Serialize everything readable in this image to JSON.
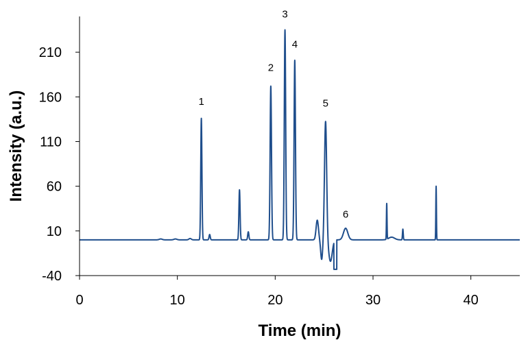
{
  "chart_data": {
    "type": "line",
    "title": "",
    "xlabel": "Time (min)",
    "ylabel": "Intensity (a.u.)",
    "xlim": [
      0,
      45
    ],
    "ylim": [
      -40,
      250
    ],
    "x_ticks": [
      0,
      10,
      20,
      30,
      40
    ],
    "y_ticks": [
      -40,
      10,
      60,
      110,
      160,
      210
    ],
    "grid": false,
    "legend": "none",
    "line_color": "#1f4e8c",
    "baseline": 0,
    "dip": {
      "start": 26.0,
      "end": 26.3,
      "value": -33
    },
    "series": [
      {
        "peaks": [
          {
            "t": 8.3,
            "h": 1,
            "w": 0.15
          },
          {
            "t": 9.8,
            "h": 1,
            "w": 0.15
          },
          {
            "t": 11.3,
            "h": 1.5,
            "w": 0.12
          },
          {
            "t": 12.45,
            "h": 136,
            "w": 0.06
          },
          {
            "t": 13.3,
            "h": 6,
            "w": 0.06
          },
          {
            "t": 16.35,
            "h": 56,
            "w": 0.06
          },
          {
            "t": 17.25,
            "h": 9,
            "w": 0.06
          },
          {
            "t": 19.55,
            "h": 172,
            "w": 0.07
          },
          {
            "t": 21.0,
            "h": 235,
            "w": 0.07
          },
          {
            "t": 22.0,
            "h": 201,
            "w": 0.07
          },
          {
            "t": 24.3,
            "h": 22,
            "w": 0.12
          },
          {
            "t": 24.75,
            "h": -22,
            "w": 0.1
          },
          {
            "t": 25.15,
            "h": 133,
            "w": 0.11
          },
          {
            "t": 25.65,
            "h": -24,
            "w": 0.18
          },
          {
            "t": 27.2,
            "h": 13,
            "w": 0.22
          },
          {
            "t": 31.4,
            "h": 40,
            "w": 0.03
          },
          {
            "t": 31.9,
            "h": 3,
            "w": 0.3
          },
          {
            "t": 33.05,
            "h": 12,
            "w": 0.04
          },
          {
            "t": 36.45,
            "h": 60,
            "w": 0.03
          }
        ]
      }
    ],
    "annotations": [
      {
        "text": "1",
        "x": 12.45,
        "y": 151
      },
      {
        "text": "2",
        "x": 19.55,
        "y": 189
      },
      {
        "text": "3",
        "x": 21.0,
        "y": 249
      },
      {
        "text": "4",
        "x": 22.0,
        "y": 215
      },
      {
        "text": "5",
        "x": 25.15,
        "y": 149
      },
      {
        "text": "6",
        "x": 27.2,
        "y": 25
      }
    ]
  }
}
